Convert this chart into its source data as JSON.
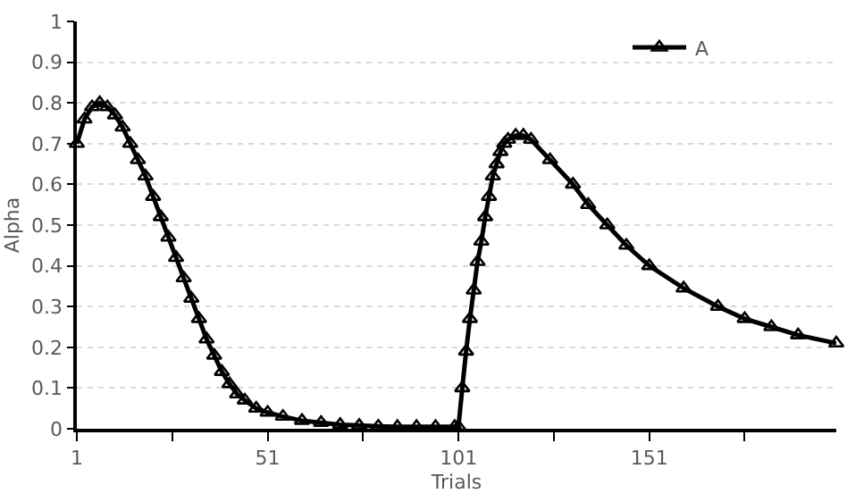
{
  "chart_data": {
    "type": "line",
    "xlabel": "Trials",
    "ylabel": "Alpha",
    "xlim": [
      1,
      200
    ],
    "xticks": [
      1,
      {
        "value": 26,
        "label": null
      },
      51,
      {
        "value": 76,
        "label": null
      },
      101,
      {
        "value": 126,
        "label": null
      },
      151,
      {
        "value": 176,
        "label": null
      }
    ],
    "ylim": [
      0,
      1
    ],
    "yticks": [
      0,
      0.1,
      0.2,
      0.3,
      0.4,
      0.5,
      0.6,
      0.7,
      0.8,
      0.9,
      1
    ],
    "grid": "y",
    "legend": "top right",
    "marker": "triangle",
    "line_style": "solid",
    "series": [
      {
        "name": "A",
        "color": "#000000",
        "x": [
          1,
          3,
          5,
          7,
          9,
          11,
          13,
          15,
          17,
          19,
          21,
          23,
          25,
          27,
          29,
          31,
          33,
          35,
          37,
          39,
          41,
          43,
          45,
          48,
          51,
          55,
          60,
          65,
          70,
          75,
          80,
          85,
          90,
          95,
          100,
          101,
          102,
          103,
          104,
          105,
          106,
          107,
          108,
          109,
          110,
          111,
          112,
          113,
          114,
          116,
          118,
          120,
          125,
          131,
          135,
          140,
          145,
          151,
          160,
          169,
          176,
          183,
          190,
          200
        ],
        "values": [
          0.7,
          0.76,
          0.79,
          0.8,
          0.79,
          0.77,
          0.74,
          0.7,
          0.66,
          0.62,
          0.57,
          0.52,
          0.47,
          0.42,
          0.37,
          0.32,
          0.27,
          0.22,
          0.18,
          0.14,
          0.11,
          0.085,
          0.07,
          0.05,
          0.04,
          0.03,
          0.02,
          0.015,
          0.01,
          0.008,
          0.006,
          0.005,
          0.005,
          0.005,
          0.005,
          0.005,
          0.1,
          0.19,
          0.27,
          0.34,
          0.41,
          0.46,
          0.52,
          0.57,
          0.62,
          0.65,
          0.68,
          0.7,
          0.71,
          0.72,
          0.72,
          0.71,
          0.66,
          0.6,
          0.55,
          0.5,
          0.45,
          0.4,
          0.345,
          0.3,
          0.27,
          0.25,
          0.23,
          0.21
        ]
      }
    ]
  }
}
